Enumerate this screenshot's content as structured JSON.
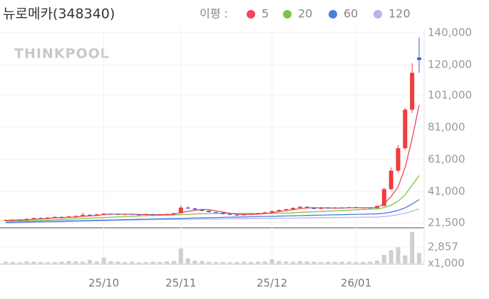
{
  "chart_data": {
    "type": "candlestick",
    "title": "뉴로메카(348340)",
    "watermark": "THINKPOOL",
    "legend_label": "이평 :",
    "up_color": "#f03c3c",
    "down_color": "#2e64e0",
    "grid": true,
    "categories": [
      null,
      null,
      null,
      null,
      null,
      null,
      null,
      null,
      null,
      null,
      null,
      null,
      null,
      null,
      "25/10",
      null,
      null,
      null,
      null,
      null,
      null,
      null,
      null,
      null,
      null,
      "25/11",
      null,
      null,
      null,
      null,
      null,
      null,
      null,
      null,
      null,
      null,
      null,
      null,
      "25/12",
      null,
      null,
      null,
      null,
      null,
      null,
      null,
      null,
      null,
      null,
      null,
      "26/01",
      null,
      null,
      null,
      null,
      null,
      null,
      null,
      null,
      null
    ],
    "open": [
      22800,
      23300,
      23500,
      23100,
      24000,
      24500,
      24300,
      24800,
      25200,
      24900,
      25500,
      25800,
      26500,
      26000,
      26800,
      27200,
      26900,
      26500,
      27000,
      26700,
      26400,
      26900,
      26500,
      26800,
      27000,
      27500,
      31000,
      30500,
      29800,
      29000,
      28200,
      27800,
      27000,
      26500,
      26200,
      26800,
      27000,
      27500,
      28000,
      28800,
      29500,
      30000,
      30800,
      31500,
      31000,
      30200,
      31000,
      30500,
      31000,
      30800,
      31200,
      30800,
      31000,
      30700,
      32000,
      42500,
      54000,
      68000,
      92000,
      124500
    ],
    "high": [
      23600,
      23900,
      23800,
      24300,
      24900,
      24800,
      25100,
      25600,
      25400,
      25800,
      26200,
      27900,
      26800,
      27100,
      27600,
      27400,
      27100,
      27300,
      27200,
      26900,
      27200,
      27100,
      27100,
      27300,
      27900,
      32500,
      31800,
      30800,
      30000,
      29200,
      28500,
      28000,
      27200,
      26800,
      27100,
      27400,
      27800,
      28400,
      29200,
      29900,
      30400,
      31200,
      32000,
      31800,
      31200,
      31400,
      31300,
      31400,
      31200,
      31600,
      31400,
      31300,
      31200,
      32300,
      43500,
      56000,
      70000,
      93000,
      121000,
      137000
    ],
    "low": [
      22500,
      23000,
      22900,
      23000,
      23800,
      24000,
      24100,
      24600,
      24700,
      24700,
      25300,
      25600,
      25800,
      25900,
      26500,
      26600,
      26300,
      26300,
      26500,
      26200,
      26200,
      26300,
      26300,
      26600,
      26800,
      27300,
      30000,
      29500,
      28700,
      28000,
      27500,
      26800,
      26200,
      25900,
      26000,
      26600,
      26800,
      27300,
      27800,
      28600,
      29300,
      29800,
      30600,
      30800,
      30000,
      30000,
      30300,
      30300,
      30500,
      30600,
      30600,
      30600,
      30400,
      30500,
      31800,
      42000,
      53000,
      67000,
      90000,
      115000
    ],
    "close": [
      23300,
      23500,
      23100,
      24000,
      24500,
      24300,
      24800,
      25200,
      24900,
      25500,
      25800,
      26500,
      26000,
      26800,
      27200,
      26900,
      26500,
      27000,
      26700,
      26400,
      26900,
      26500,
      26800,
      27000,
      27500,
      31000,
      30500,
      29800,
      29000,
      28200,
      27800,
      27000,
      26500,
      26200,
      26800,
      27000,
      27500,
      28000,
      28800,
      29500,
      30000,
      30800,
      31500,
      31000,
      30200,
      31000,
      30500,
      31000,
      30800,
      31200,
      30800,
      31000,
      30700,
      32000,
      42500,
      54000,
      68000,
      92000,
      115000,
      123000
    ],
    "series": [
      {
        "name": "5",
        "color": "#f0465a",
        "values": [
          23000,
          23200,
          23300,
          23400,
          23700,
          23900,
          24200,
          24600,
          24700,
          24900,
          25100,
          25600,
          25800,
          26100,
          26600,
          26900,
          26900,
          26900,
          26900,
          26700,
          26700,
          26600,
          26600,
          26700,
          26900,
          27900,
          28700,
          29300,
          29800,
          29700,
          29000,
          28200,
          27500,
          26900,
          26700,
          26700,
          26900,
          27300,
          27800,
          28500,
          29100,
          29700,
          30400,
          30800,
          30900,
          30900,
          30800,
          30700,
          30700,
          30900,
          30900,
          30900,
          30900,
          31100,
          33400,
          37900,
          44000,
          56000,
          74000,
          95000
        ]
      },
      {
        "name": "20",
        "color": "#7cc44a",
        "values": [
          22500,
          22600,
          22700,
          22800,
          22900,
          23000,
          23200,
          23400,
          23600,
          23800,
          24000,
          24200,
          24400,
          24600,
          24800,
          25000,
          25200,
          25400,
          25600,
          25800,
          26000,
          26100,
          26200,
          26300,
          26400,
          26600,
          26800,
          27000,
          27200,
          27300,
          27400,
          27400,
          27400,
          27400,
          27400,
          27400,
          27400,
          27400,
          27400,
          27500,
          27600,
          27800,
          28000,
          28200,
          28400,
          28600,
          28800,
          29000,
          29200,
          29400,
          29600,
          29800,
          30000,
          30200,
          31000,
          32500,
          35000,
          39000,
          45000,
          51000
        ]
      },
      {
        "name": "60",
        "color": "#4a7de0",
        "values": [
          21800,
          21900,
          22000,
          22100,
          22200,
          22300,
          22400,
          22500,
          22600,
          22700,
          22800,
          22900,
          23000,
          23100,
          23200,
          23300,
          23400,
          23500,
          23600,
          23700,
          23800,
          23900,
          24000,
          24100,
          24200,
          24300,
          24400,
          24500,
          24600,
          24700,
          24800,
          24900,
          25000,
          25100,
          25200,
          25300,
          25400,
          25500,
          25600,
          25700,
          25800,
          25900,
          26000,
          26100,
          26200,
          26300,
          26400,
          26500,
          26600,
          26700,
          26800,
          26900,
          27000,
          27100,
          27500,
          28200,
          29300,
          30900,
          33200,
          36000
        ]
      },
      {
        "name": "120",
        "color": "#b4b4f0",
        "values": [
          21400,
          21500,
          21600,
          21700,
          21800,
          21900,
          22000,
          22100,
          22200,
          22300,
          22400,
          22500,
          22600,
          22700,
          22800,
          22900,
          23000,
          23100,
          23200,
          23300,
          23400,
          23500,
          23500,
          23600,
          23600,
          23700,
          23700,
          23800,
          23800,
          23900,
          23900,
          24000,
          24000,
          24100,
          24100,
          24200,
          24200,
          24300,
          24300,
          24400,
          24400,
          24500,
          24500,
          24600,
          24600,
          24700,
          24700,
          24800,
          24800,
          24900,
          24900,
          25000,
          25000,
          25100,
          25400,
          25900,
          26600,
          27500,
          28700,
          30300
        ]
      }
    ],
    "ylim": [
      19300,
      142600
    ],
    "yticks": [
      {
        "value": 140000,
        "label": "140,000"
      },
      {
        "value": 120000,
        "label": "120,000"
      },
      {
        "value": 101000,
        "label": "101,000"
      },
      {
        "value": 81000,
        "label": "81,000"
      },
      {
        "value": 61000,
        "label": "61,000"
      },
      {
        "value": 41000,
        "label": "41,000"
      },
      {
        "value": 21500,
        "label": "21,500"
      }
    ],
    "volume": {
      "color": "#cfcfcf",
      "unit": "x1,000",
      "ylim": [
        0,
        5960
      ],
      "yticks": [
        {
          "value": 2857,
          "label": "2,857"
        }
      ],
      "values": [
        300,
        250,
        200,
        350,
        300,
        250,
        200,
        250,
        300,
        400,
        350,
        300,
        600,
        350,
        1000,
        400,
        300,
        250,
        300,
        200,
        250,
        300,
        250,
        350,
        400,
        2600,
        900,
        500,
        400,
        300,
        250,
        250,
        200,
        250,
        300,
        250,
        300,
        350,
        700,
        400,
        350,
        300,
        400,
        350,
        300,
        250,
        300,
        280,
        300,
        320,
        250,
        260,
        300,
        500,
        1500,
        2300,
        2800,
        1400,
        5500,
        1800
      ]
    }
  }
}
